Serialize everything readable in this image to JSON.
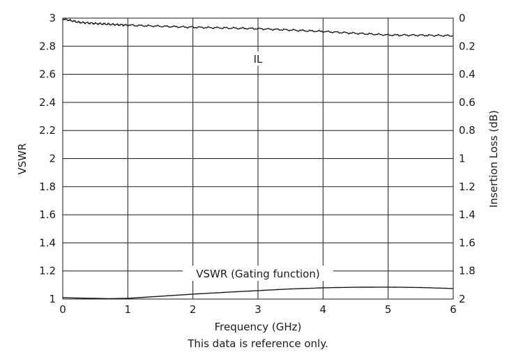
{
  "chart_data": {
    "type": "line",
    "title": "",
    "xlabel": "Frequency (GHz)",
    "ylabel": "VSWR",
    "y2label": "Insertion Loss (dB)",
    "note": "This data is reference only.",
    "xlim": [
      0,
      6
    ],
    "ylim": [
      1,
      3
    ],
    "y2lim": [
      2,
      0
    ],
    "grid": true,
    "x_ticks": [
      "0",
      "1",
      "2",
      "3",
      "4",
      "5",
      "6"
    ],
    "y_ticks": [
      "1",
      "1.2",
      "1.4",
      "1.6",
      "1.8",
      "2",
      "2.2",
      "2.4",
      "2.6",
      "2.8",
      "3"
    ],
    "y2_ticks": [
      "2",
      "1.8",
      "1.6",
      "1.4",
      "1.2",
      "1",
      "0.8",
      "0.6",
      "0.4",
      "0.2",
      "0"
    ],
    "series": [
      {
        "name": "IL",
        "axis": "right",
        "color": "#1a1a1a",
        "x": [
          0,
          0.25,
          0.5,
          0.75,
          1,
          1.5,
          2,
          2.5,
          3,
          3.5,
          4,
          4.5,
          5,
          5.5,
          6
        ],
        "values": [
          0.005,
          0.03,
          0.038,
          0.045,
          0.05,
          0.058,
          0.065,
          0.07,
          0.075,
          0.085,
          0.095,
          0.108,
          0.12,
          0.122,
          0.125
        ]
      },
      {
        "name": "VSWR (Gating function)",
        "axis": "left",
        "color": "#1a1a1a",
        "x": [
          0,
          0.35,
          0.7,
          1,
          1.5,
          2,
          2.5,
          3,
          3.5,
          4,
          4.5,
          5,
          5.5,
          6
        ],
        "values": [
          1.01,
          1.006,
          1.003,
          1.005,
          1.02,
          1.035,
          1.048,
          1.06,
          1.072,
          1.08,
          1.084,
          1.085,
          1.082,
          1.075
        ]
      }
    ]
  }
}
